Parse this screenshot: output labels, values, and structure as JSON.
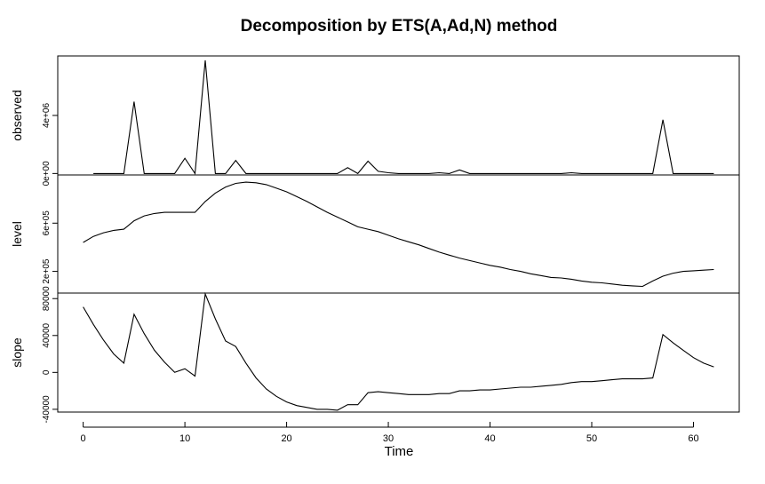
{
  "chart_data": {
    "type": "line",
    "title": "Decomposition by ETS(A,Ad,N) method",
    "xlabel": "Time",
    "xlim": [
      -2.5,
      64.5
    ],
    "x_ticks": [
      "0",
      "10",
      "20",
      "30",
      "40",
      "50",
      "60"
    ],
    "panels": [
      {
        "name": "observed",
        "ylabel": "observed",
        "ylim": [
          -100000,
          8100000
        ],
        "y_ticks": [
          0,
          4000000
        ],
        "y_tick_labels": [
          "0e+00",
          "4e+06"
        ],
        "x": [
          1,
          2,
          3,
          4,
          5,
          6,
          7,
          8,
          9,
          10,
          11,
          12,
          13,
          14,
          15,
          16,
          17,
          18,
          19,
          20,
          21,
          22,
          23,
          24,
          25,
          26,
          27,
          28,
          29,
          30,
          31,
          32,
          33,
          34,
          35,
          36,
          37,
          38,
          39,
          40,
          41,
          42,
          43,
          44,
          45,
          46,
          47,
          48,
          49,
          50,
          51,
          52,
          53,
          54,
          55,
          56,
          57,
          58,
          59,
          60,
          61,
          62
        ],
        "values": [
          0,
          0,
          0,
          0,
          4950000,
          0,
          0,
          0,
          0,
          1050000,
          0,
          7800000,
          0,
          0,
          900000,
          0,
          0,
          0,
          0,
          0,
          0,
          0,
          0,
          0,
          0,
          400000,
          0,
          850000,
          150000,
          50000,
          0,
          0,
          0,
          0,
          50000,
          0,
          250000,
          0,
          0,
          0,
          0,
          0,
          0,
          0,
          0,
          0,
          0,
          50000,
          0,
          0,
          0,
          0,
          0,
          0,
          0,
          0,
          3700000,
          0,
          0,
          0,
          0,
          0
        ]
      },
      {
        "name": "level",
        "ylabel": "level",
        "ylim": [
          20000,
          1000000
        ],
        "y_ticks": [
          200000,
          600000
        ],
        "y_tick_labels": [
          "2e+05",
          "6e+05"
        ],
        "x": [
          0,
          1,
          2,
          3,
          4,
          5,
          6,
          7,
          8,
          9,
          10,
          11,
          12,
          13,
          14,
          15,
          16,
          17,
          18,
          19,
          20,
          21,
          22,
          23,
          24,
          25,
          26,
          27,
          28,
          29,
          30,
          31,
          32,
          33,
          34,
          35,
          36,
          37,
          38,
          39,
          40,
          41,
          42,
          43,
          44,
          45,
          46,
          47,
          48,
          49,
          50,
          51,
          52,
          53,
          54,
          55,
          56,
          57,
          58,
          59,
          60,
          61,
          62
        ],
        "values": [
          440000,
          490000,
          520000,
          540000,
          550000,
          620000,
          660000,
          680000,
          690000,
          690000,
          690000,
          690000,
          780000,
          850000,
          900000,
          930000,
          940000,
          935000,
          920000,
          890000,
          860000,
          820000,
          780000,
          735000,
          690000,
          650000,
          610000,
          570000,
          550000,
          530000,
          500000,
          470000,
          445000,
          420000,
          390000,
          360000,
          335000,
          310000,
          290000,
          270000,
          250000,
          235000,
          215000,
          200000,
          180000,
          165000,
          150000,
          145000,
          135000,
          120000,
          110000,
          105000,
          95000,
          85000,
          80000,
          75000,
          120000,
          160000,
          185000,
          200000,
          205000,
          210000,
          215000
        ]
      },
      {
        "name": "slope",
        "ylabel": "slope",
        "ylim": [
          -43000,
          86000
        ],
        "y_ticks": [
          -40000,
          0,
          40000,
          80000
        ],
        "y_tick_labels": [
          "-40000",
          "0",
          "40000",
          "80000"
        ],
        "x": [
          0,
          1,
          2,
          3,
          4,
          5,
          6,
          7,
          8,
          9,
          10,
          11,
          12,
          13,
          14,
          15,
          16,
          17,
          18,
          19,
          20,
          21,
          22,
          23,
          24,
          25,
          26,
          27,
          28,
          29,
          30,
          31,
          32,
          33,
          34,
          35,
          36,
          37,
          38,
          39,
          40,
          41,
          42,
          43,
          44,
          45,
          46,
          47,
          48,
          49,
          50,
          51,
          52,
          53,
          54,
          55,
          56,
          57,
          58,
          59,
          60,
          61,
          62
        ],
        "values": [
          71000,
          52000,
          35000,
          20000,
          10000,
          63000,
          42000,
          24000,
          11000,
          0,
          4000,
          -4000,
          85000,
          58000,
          34000,
          28000,
          10000,
          -6000,
          -18000,
          -26000,
          -32000,
          -36000,
          -38000,
          -40000,
          -40000,
          -41000,
          -35000,
          -35000,
          -22000,
          -21000,
          -22000,
          -23000,
          -24000,
          -24000,
          -24000,
          -23000,
          -23000,
          -20000,
          -20000,
          -19000,
          -19000,
          -18000,
          -17000,
          -16000,
          -16000,
          -15000,
          -14000,
          -13000,
          -11000,
          -10000,
          -10000,
          -9000,
          -8000,
          -7000,
          -7000,
          -7000,
          -6000,
          41000,
          32000,
          24000,
          16000,
          10000,
          6000
        ]
      }
    ]
  }
}
